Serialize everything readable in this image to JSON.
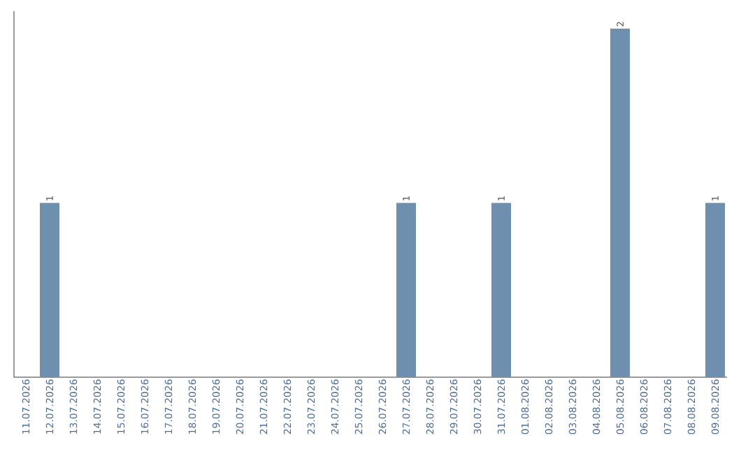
{
  "chart_data": {
    "type": "bar",
    "categories": [
      "11.07.2026",
      "12.07.2026",
      "13.07.2026",
      "14.07.2026",
      "15.07.2026",
      "16.07.2026",
      "17.07.2026",
      "18.07.2026",
      "19.07.2026",
      "20.07.2026",
      "21.07.2026",
      "22.07.2026",
      "23.07.2026",
      "24.07.2026",
      "25.07.2026",
      "26.07.2026",
      "27.07.2026",
      "28.07.2026",
      "29.07.2026",
      "30.07.2026",
      "31.07.2026",
      "01.08.2026",
      "02.08.2026",
      "03.08.2026",
      "04.08.2026",
      "05.08.2026",
      "06.08.2026",
      "07.08.2026",
      "08.08.2026",
      "09.08.2026"
    ],
    "values": [
      0,
      1,
      0,
      0,
      0,
      0,
      0,
      0,
      0,
      0,
      0,
      0,
      0,
      0,
      0,
      0,
      1,
      0,
      0,
      0,
      1,
      0,
      0,
      0,
      0,
      2,
      0,
      0,
      0,
      1
    ],
    "value_labels": [
      null,
      "1",
      null,
      null,
      null,
      null,
      null,
      null,
      null,
      null,
      null,
      null,
      null,
      null,
      null,
      null,
      "1",
      null,
      null,
      null,
      "1",
      null,
      null,
      null,
      null,
      "2",
      null,
      null,
      null,
      "1"
    ],
    "color": "#6f8fae",
    "ylim": [
      0,
      2.1
    ],
    "tick_labels": "x"
  }
}
